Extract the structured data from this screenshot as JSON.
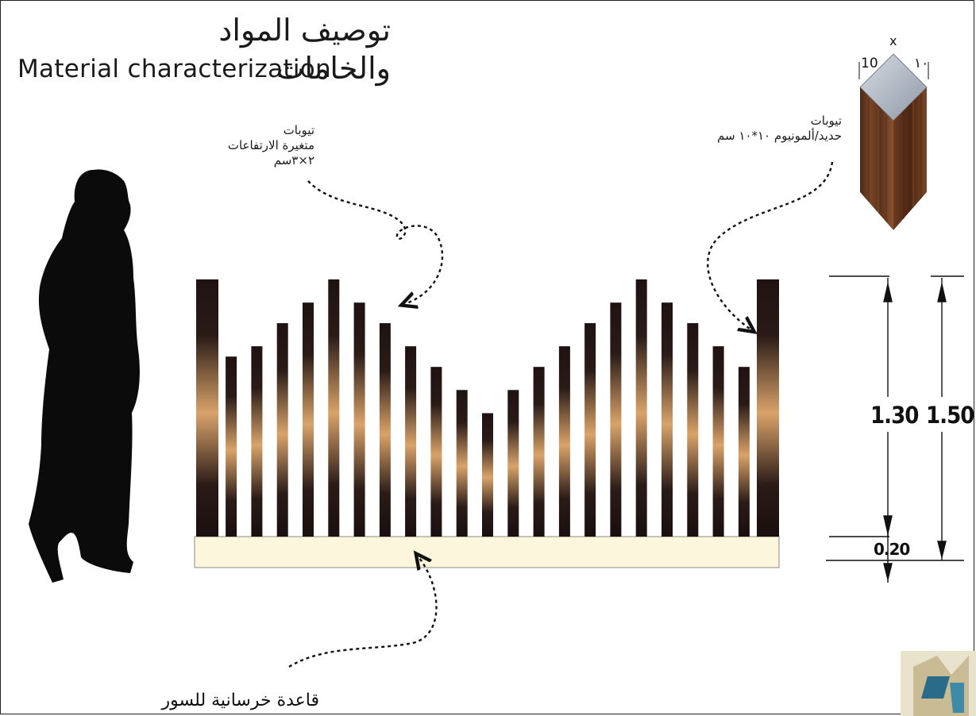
{
  "title": {
    "arabic": "توصيف المواد والخامات",
    "english": "Material characterization"
  },
  "annotations": {
    "variable_tubes": [
      "تيوبات",
      "متغيرة الارتفاعات",
      "٢×٣سم"
    ],
    "tube_material": [
      "تيوبات",
      "حديد/ألمونيوم ١٠*١٠ سم"
    ],
    "base_caption": "قاعدة خرسانية للسور"
  },
  "cube": {
    "label_left": "10",
    "label_center": "x",
    "label_right": "١٠"
  },
  "dimensions": {
    "bars_height": "1.30",
    "total_height": "1.50",
    "base_height": "0.20"
  },
  "fence": {
    "bar_heights_relative": [
      1.0,
      0.7,
      0.74,
      0.83,
      0.91,
      1.0,
      0.91,
      0.83,
      0.74,
      0.66,
      0.57,
      0.48,
      0.57,
      0.66,
      0.74,
      0.83,
      0.91,
      1.0,
      0.91,
      0.83,
      0.74,
      0.66,
      1.0
    ],
    "bar_color_dark": "#1f1212",
    "bar_color_light": "#d9a36a",
    "base_color": "#fbf6dc"
  }
}
